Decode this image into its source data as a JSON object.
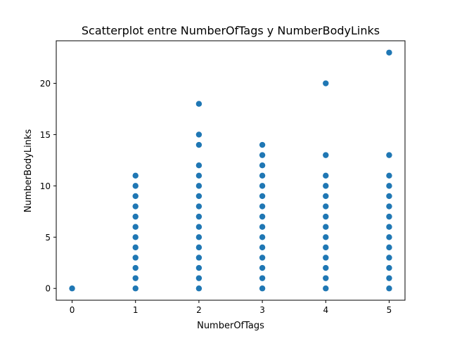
{
  "chart_data": {
    "type": "scatter",
    "title": "Scatterplot entre NumberOfTags y NumberBodyLinks",
    "xlabel": "NumberOfTags",
    "ylabel": "NumberBodyLinks",
    "xlim": [
      -0.25,
      5.25
    ],
    "ylim": [
      -1.15,
      24.15
    ],
    "xticks": [
      0,
      1,
      2,
      3,
      4,
      5
    ],
    "yticks": [
      0,
      5,
      10,
      15,
      20
    ],
    "grid": false,
    "marker_color": "#1f77b4",
    "points_by_x": [
      {
        "x": 0,
        "y": [
          0
        ]
      },
      {
        "x": 1,
        "y": [
          0,
          1,
          2,
          3,
          4,
          5,
          6,
          7,
          8,
          9,
          10,
          11
        ]
      },
      {
        "x": 2,
        "y": [
          0,
          1,
          2,
          3,
          4,
          5,
          6,
          7,
          8,
          9,
          10,
          11,
          12,
          14,
          15,
          18
        ]
      },
      {
        "x": 3,
        "y": [
          0,
          1,
          2,
          3,
          4,
          5,
          6,
          7,
          8,
          9,
          10,
          11,
          12,
          13,
          14
        ]
      },
      {
        "x": 4,
        "y": [
          0,
          1,
          2,
          3,
          4,
          5,
          6,
          7,
          8,
          9,
          10,
          11,
          13,
          20
        ]
      },
      {
        "x": 5,
        "y": [
          0,
          1,
          2,
          3,
          4,
          5,
          6,
          7,
          8,
          9,
          10,
          11,
          13,
          23
        ]
      }
    ]
  }
}
